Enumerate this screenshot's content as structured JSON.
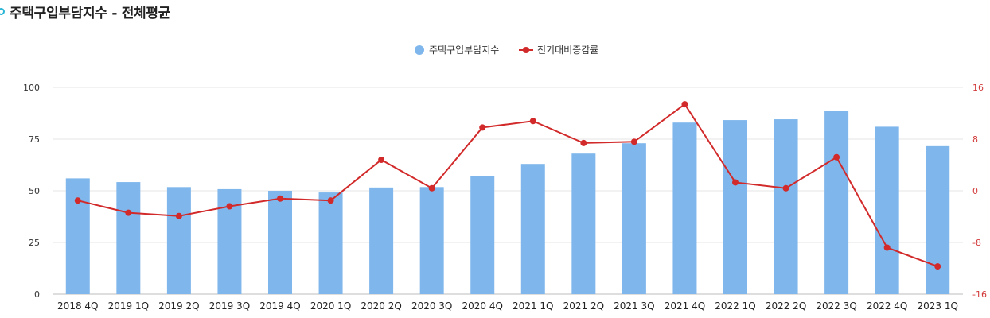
{
  "header": {
    "title": "주택구입부담지수 - 전체평균",
    "marker_icon": "ring-bullet-icon"
  },
  "colors": {
    "bar": "#7fb7ec",
    "line": "#d22a2a",
    "grid": "#e6e6e6",
    "accent": "#2bb6d6"
  },
  "chart_data": {
    "type": "bar+line",
    "title": "",
    "legend": {
      "placement": "top-center",
      "entries": [
        "주택구입부담지수",
        "전기대비증감률"
      ]
    },
    "categories": [
      "2018 4Q",
      "2019 1Q",
      "2019 2Q",
      "2019 3Q",
      "2019 4Q",
      "2020 1Q",
      "2020 2Q",
      "2020 3Q",
      "2020 4Q",
      "2021 1Q",
      "2021 2Q",
      "2021 3Q",
      "2021 4Q",
      "2022 1Q",
      "2022 2Q",
      "2022 3Q",
      "2022 4Q",
      "2023 1Q"
    ],
    "series": [
      {
        "name": "주택구입부담지수",
        "type": "bar",
        "axis": "left",
        "values": [
          56.0,
          54.2,
          51.8,
          50.8,
          50.0,
          49.2,
          51.6,
          51.8,
          57.0,
          63.0,
          68.0,
          73.0,
          83.0,
          84.2,
          84.6,
          88.8,
          81.0,
          71.6
        ]
      },
      {
        "name": "전기대비증감률",
        "type": "line",
        "axis": "right",
        "values": [
          -1.5,
          -3.4,
          -3.9,
          -2.4,
          -1.2,
          -1.5,
          4.8,
          0.4,
          9.8,
          10.8,
          7.4,
          7.6,
          13.4,
          1.3,
          0.4,
          5.2,
          -8.8,
          -11.7
        ]
      }
    ],
    "y_left": {
      "min": 0,
      "max": 100,
      "ticks": [
        0,
        25,
        50,
        75,
        100
      ]
    },
    "y_right": {
      "min": -16,
      "max": 16,
      "ticks": [
        -16,
        -8,
        0,
        8,
        16
      ]
    },
    "grid": true
  }
}
